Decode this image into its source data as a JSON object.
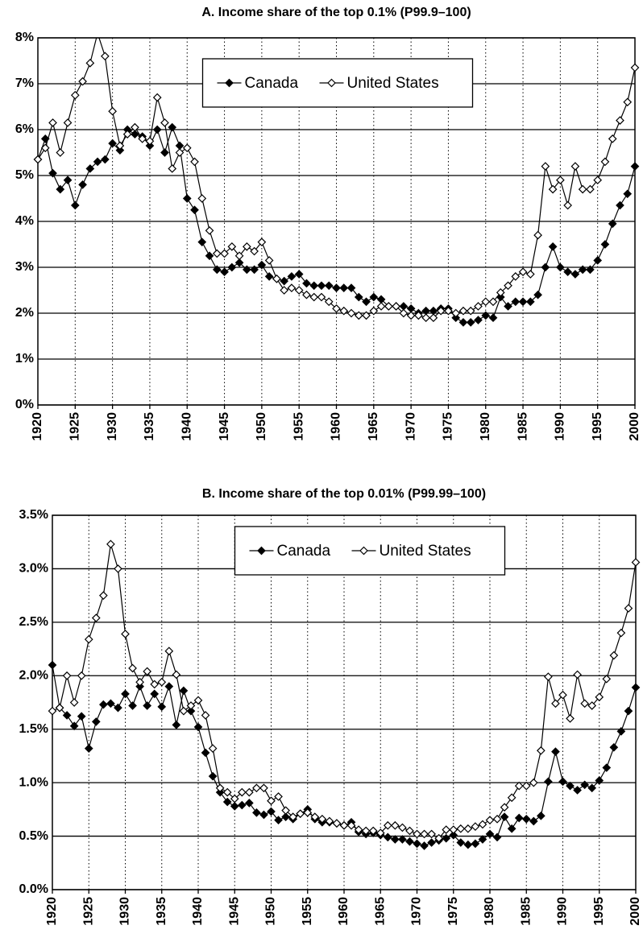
{
  "chart_data": [
    {
      "type": "line",
      "title": "A. Income share of the top 0.1% (P99.9–100)",
      "x": [
        1920,
        1921,
        1922,
        1923,
        1924,
        1925,
        1926,
        1927,
        1928,
        1929,
        1930,
        1931,
        1932,
        1933,
        1934,
        1935,
        1936,
        1937,
        1938,
        1939,
        1940,
        1941,
        1942,
        1943,
        1944,
        1945,
        1946,
        1947,
        1948,
        1949,
        1950,
        1951,
        1952,
        1953,
        1954,
        1955,
        1956,
        1957,
        1958,
        1959,
        1960,
        1961,
        1962,
        1963,
        1964,
        1965,
        1966,
        1967,
        1968,
        1969,
        1970,
        1971,
        1972,
        1973,
        1974,
        1975,
        1976,
        1977,
        1978,
        1979,
        1980,
        1981,
        1982,
        1983,
        1984,
        1985,
        1986,
        1987,
        1988,
        1989,
        1990,
        1991,
        1992,
        1993,
        1994,
        1995,
        1996,
        1997,
        1998,
        1999,
        2000
      ],
      "series": [
        {
          "name": "Canada",
          "color": "#000000",
          "marker": "filled",
          "values": [
            5.35,
            5.8,
            5.05,
            4.7,
            4.9,
            4.35,
            4.8,
            5.15,
            5.3,
            5.35,
            5.7,
            5.55,
            6.0,
            5.9,
            5.85,
            5.65,
            6.0,
            5.5,
            6.05,
            5.65,
            4.5,
            4.25,
            3.55,
            3.25,
            2.95,
            2.9,
            3.0,
            3.1,
            2.95,
            2.95,
            3.05,
            2.8,
            2.75,
            2.7,
            2.8,
            2.85,
            2.65,
            2.6,
            2.6,
            2.6,
            2.55,
            2.55,
            2.55,
            2.35,
            2.25,
            2.35,
            2.3,
            2.15,
            2.15,
            2.15,
            2.1,
            2.0,
            2.05,
            2.05,
            2.1,
            2.1,
            1.9,
            1.8,
            1.8,
            1.85,
            1.95,
            1.9,
            2.35,
            2.15,
            2.25,
            2.25,
            2.25,
            2.4,
            3.0,
            3.45,
            3.0,
            2.9,
            2.85,
            2.95,
            2.95,
            3.15,
            3.5,
            3.95,
            4.35,
            4.6,
            5.2
          ]
        },
        {
          "name": "United States",
          "color": "#000000",
          "marker": "open",
          "values": [
            5.35,
            5.6,
            6.15,
            5.5,
            6.15,
            6.75,
            7.05,
            7.45,
            8.1,
            7.6,
            6.4,
            5.65,
            5.9,
            6.05,
            5.8,
            5.75,
            6.7,
            6.15,
            5.15,
            5.5,
            5.6,
            5.3,
            4.5,
            3.8,
            3.3,
            3.3,
            3.45,
            3.25,
            3.45,
            3.35,
            3.55,
            3.15,
            2.75,
            2.5,
            2.55,
            2.5,
            2.4,
            2.35,
            2.35,
            2.25,
            2.1,
            2.05,
            2.0,
            1.95,
            1.95,
            2.05,
            2.15,
            2.15,
            2.15,
            2.0,
            1.95,
            1.95,
            1.9,
            1.9,
            2.05,
            2.05,
            2.0,
            2.05,
            2.05,
            2.15,
            2.25,
            2.25,
            2.45,
            2.6,
            2.8,
            2.9,
            2.85,
            3.7,
            5.2,
            4.7,
            4.9,
            4.35,
            5.2,
            4.7,
            4.7,
            4.9,
            5.3,
            5.8,
            6.2,
            6.6,
            7.35
          ]
        }
      ],
      "xlim": [
        1920,
        2000
      ],
      "xticks": [
        1920,
        1925,
        1930,
        1935,
        1940,
        1945,
        1950,
        1955,
        1960,
        1965,
        1970,
        1975,
        1980,
        1985,
        1990,
        1995,
        2000
      ],
      "ylim": [
        0,
        8
      ],
      "yticks": [
        {
          "value": 0,
          "label": "0%"
        },
        {
          "value": 1,
          "label": "1%"
        },
        {
          "value": 2,
          "label": "2%"
        },
        {
          "value": 3,
          "label": "3%"
        },
        {
          "value": 4,
          "label": "4%"
        },
        {
          "value": 5,
          "label": "5%"
        },
        {
          "value": 6,
          "label": "6%"
        },
        {
          "value": 7,
          "label": "7%"
        },
        {
          "value": 8,
          "label": "8%"
        }
      ],
      "grid": true,
      "legend": "upper center"
    },
    {
      "type": "line",
      "title": "B. Income share of the top 0.01% (P99.99–100)",
      "x": [
        1920,
        1921,
        1922,
        1923,
        1924,
        1925,
        1926,
        1927,
        1928,
        1929,
        1930,
        1931,
        1932,
        1933,
        1934,
        1935,
        1936,
        1937,
        1938,
        1939,
        1940,
        1941,
        1942,
        1943,
        1944,
        1945,
        1946,
        1947,
        1948,
        1949,
        1950,
        1951,
        1952,
        1953,
        1954,
        1955,
        1956,
        1957,
        1958,
        1959,
        1960,
        1961,
        1962,
        1963,
        1964,
        1965,
        1966,
        1967,
        1968,
        1969,
        1970,
        1971,
        1972,
        1973,
        1974,
        1975,
        1976,
        1977,
        1978,
        1979,
        1980,
        1981,
        1982,
        1983,
        1984,
        1985,
        1986,
        1987,
        1988,
        1989,
        1990,
        1991,
        1992,
        1993,
        1994,
        1995,
        1996,
        1997,
        1998,
        1999,
        2000
      ],
      "series": [
        {
          "name": "Canada",
          "color": "#000000",
          "marker": "filled",
          "values": [
            2.1,
            1.7,
            1.63,
            1.53,
            1.62,
            1.32,
            1.57,
            1.73,
            1.74,
            1.7,
            1.83,
            1.72,
            1.9,
            1.72,
            1.83,
            1.71,
            1.9,
            1.54,
            1.86,
            1.67,
            1.52,
            1.28,
            1.06,
            0.91,
            0.82,
            0.78,
            0.79,
            0.81,
            0.72,
            0.7,
            0.73,
            0.65,
            0.68,
            0.66,
            0.71,
            0.75,
            0.66,
            0.63,
            0.63,
            0.62,
            0.6,
            0.63,
            0.54,
            0.52,
            0.53,
            0.51,
            0.49,
            0.47,
            0.47,
            0.45,
            0.43,
            0.41,
            0.44,
            0.46,
            0.48,
            0.51,
            0.44,
            0.42,
            0.43,
            0.47,
            0.52,
            0.49,
            0.68,
            0.57,
            0.67,
            0.66,
            0.64,
            0.69,
            1.01,
            1.29,
            1.01,
            0.97,
            0.93,
            0.98,
            0.95,
            1.02,
            1.14,
            1.33,
            1.48,
            1.67,
            1.89
          ]
        },
        {
          "name": "United States",
          "color": "#000000",
          "marker": "open",
          "values": [
            1.67,
            1.7,
            2.0,
            1.75,
            2.0,
            2.34,
            2.54,
            2.75,
            3.23,
            3.0,
            2.39,
            2.07,
            1.94,
            2.04,
            1.92,
            1.94,
            2.23,
            2.01,
            1.67,
            1.72,
            1.77,
            1.63,
            1.32,
            0.95,
            0.91,
            0.85,
            0.91,
            0.91,
            0.95,
            0.95,
            0.83,
            0.87,
            0.74,
            0.68,
            0.71,
            0.72,
            0.68,
            0.66,
            0.64,
            0.62,
            0.6,
            0.6,
            0.56,
            0.55,
            0.55,
            0.53,
            0.6,
            0.6,
            0.58,
            0.55,
            0.52,
            0.52,
            0.52,
            0.48,
            0.56,
            0.56,
            0.57,
            0.57,
            0.59,
            0.61,
            0.65,
            0.66,
            0.77,
            0.86,
            0.97,
            0.97,
            1.0,
            1.3,
            1.99,
            1.74,
            1.82,
            1.6,
            2.01,
            1.74,
            1.72,
            1.8,
            1.97,
            2.19,
            2.4,
            2.63,
            3.06
          ]
        }
      ],
      "xlim": [
        1920,
        2000
      ],
      "xticks": [
        1920,
        1925,
        1930,
        1935,
        1940,
        1945,
        1950,
        1955,
        1960,
        1965,
        1970,
        1975,
        1980,
        1985,
        1990,
        1995,
        2000
      ],
      "ylim": [
        0,
        3.5
      ],
      "yticks": [
        {
          "value": 0,
          "label": "0.0%"
        },
        {
          "value": 0.5,
          "label": "0.5%"
        },
        {
          "value": 1,
          "label": "1.0%"
        },
        {
          "value": 1.5,
          "label": "1.5%"
        },
        {
          "value": 2,
          "label": "2.0%"
        },
        {
          "value": 2.5,
          "label": "2.5%"
        },
        {
          "value": 3,
          "label": "3.0%"
        },
        {
          "value": 3.5,
          "label": "3.5%"
        }
      ],
      "grid": true,
      "legend": "upper center"
    }
  ]
}
